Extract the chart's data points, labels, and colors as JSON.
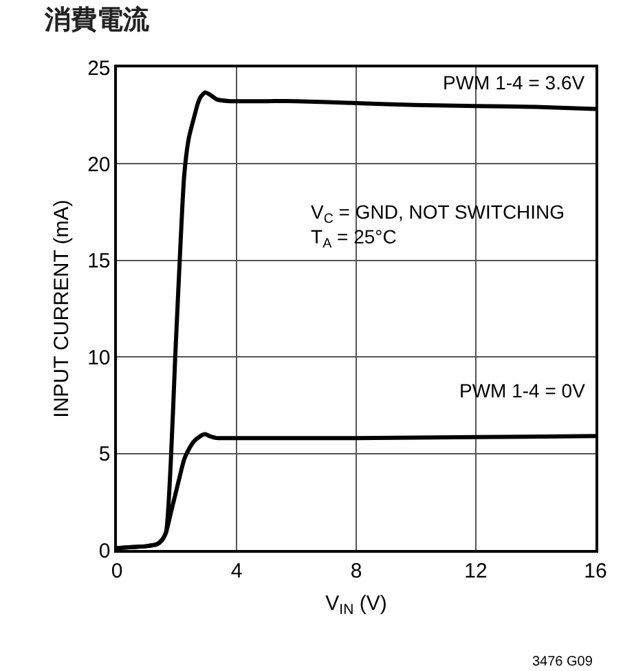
{
  "chart_data": {
    "type": "line",
    "title": "消費電流",
    "xlabel": "V$_{IN}$ (V)",
    "ylabel": "INPUT CURRENT (mA)",
    "xlim": [
      0,
      16
    ],
    "xticks": [
      0,
      4,
      8,
      12,
      16
    ],
    "ylim": [
      0,
      25
    ],
    "yticks": [
      0,
      5,
      10,
      15,
      20,
      25
    ],
    "grid": true,
    "legend": false,
    "marker": "none",
    "line_style": "solid",
    "series": [
      {
        "color": "#000000",
        "x": [
          0,
          0.5,
          1,
          1.34,
          1.5,
          1.64,
          1.8,
          1.95,
          2.1,
          2.25,
          2.4,
          2.56,
          2.7,
          2.79,
          2.95,
          3.1,
          3.33,
          3.79,
          5,
          6,
          8,
          10,
          12,
          14,
          16
        ],
        "values": [
          0.1,
          0.15,
          0.2,
          0.3,
          0.5,
          0.9,
          4.5,
          10,
          15,
          19.4,
          21.3,
          22.3,
          23.1,
          23.45,
          23.7,
          23.6,
          23.35,
          23.25,
          23.25,
          23.25,
          23.15,
          23.05,
          23,
          22.95,
          22.85
        ]
      },
      {
        "color": "#000000",
        "x": [
          0,
          0.5,
          1,
          1.34,
          1.5,
          1.64,
          1.8,
          1.95,
          2.1,
          2.25,
          2.4,
          2.56,
          2.79,
          2.95,
          3.1,
          3.33,
          3.79,
          5,
          8,
          12,
          16
        ],
        "values": [
          0.1,
          0.15,
          0.2,
          0.3,
          0.5,
          0.9,
          1.9,
          2.85,
          3.8,
          4.7,
          5.2,
          5.6,
          5.9,
          6.0,
          5.9,
          5.8,
          5.8,
          5.8,
          5.8,
          5.85,
          5.9
        ]
      }
    ],
    "annotations": [
      "PWM 1-4 = 3.6V",
      "PWM 1-4 = 0V",
      "V$_{C}$ = GND, NOT SWITCHING\nT$_{A}$ = 25°C",
      "3476 G09"
    ]
  }
}
